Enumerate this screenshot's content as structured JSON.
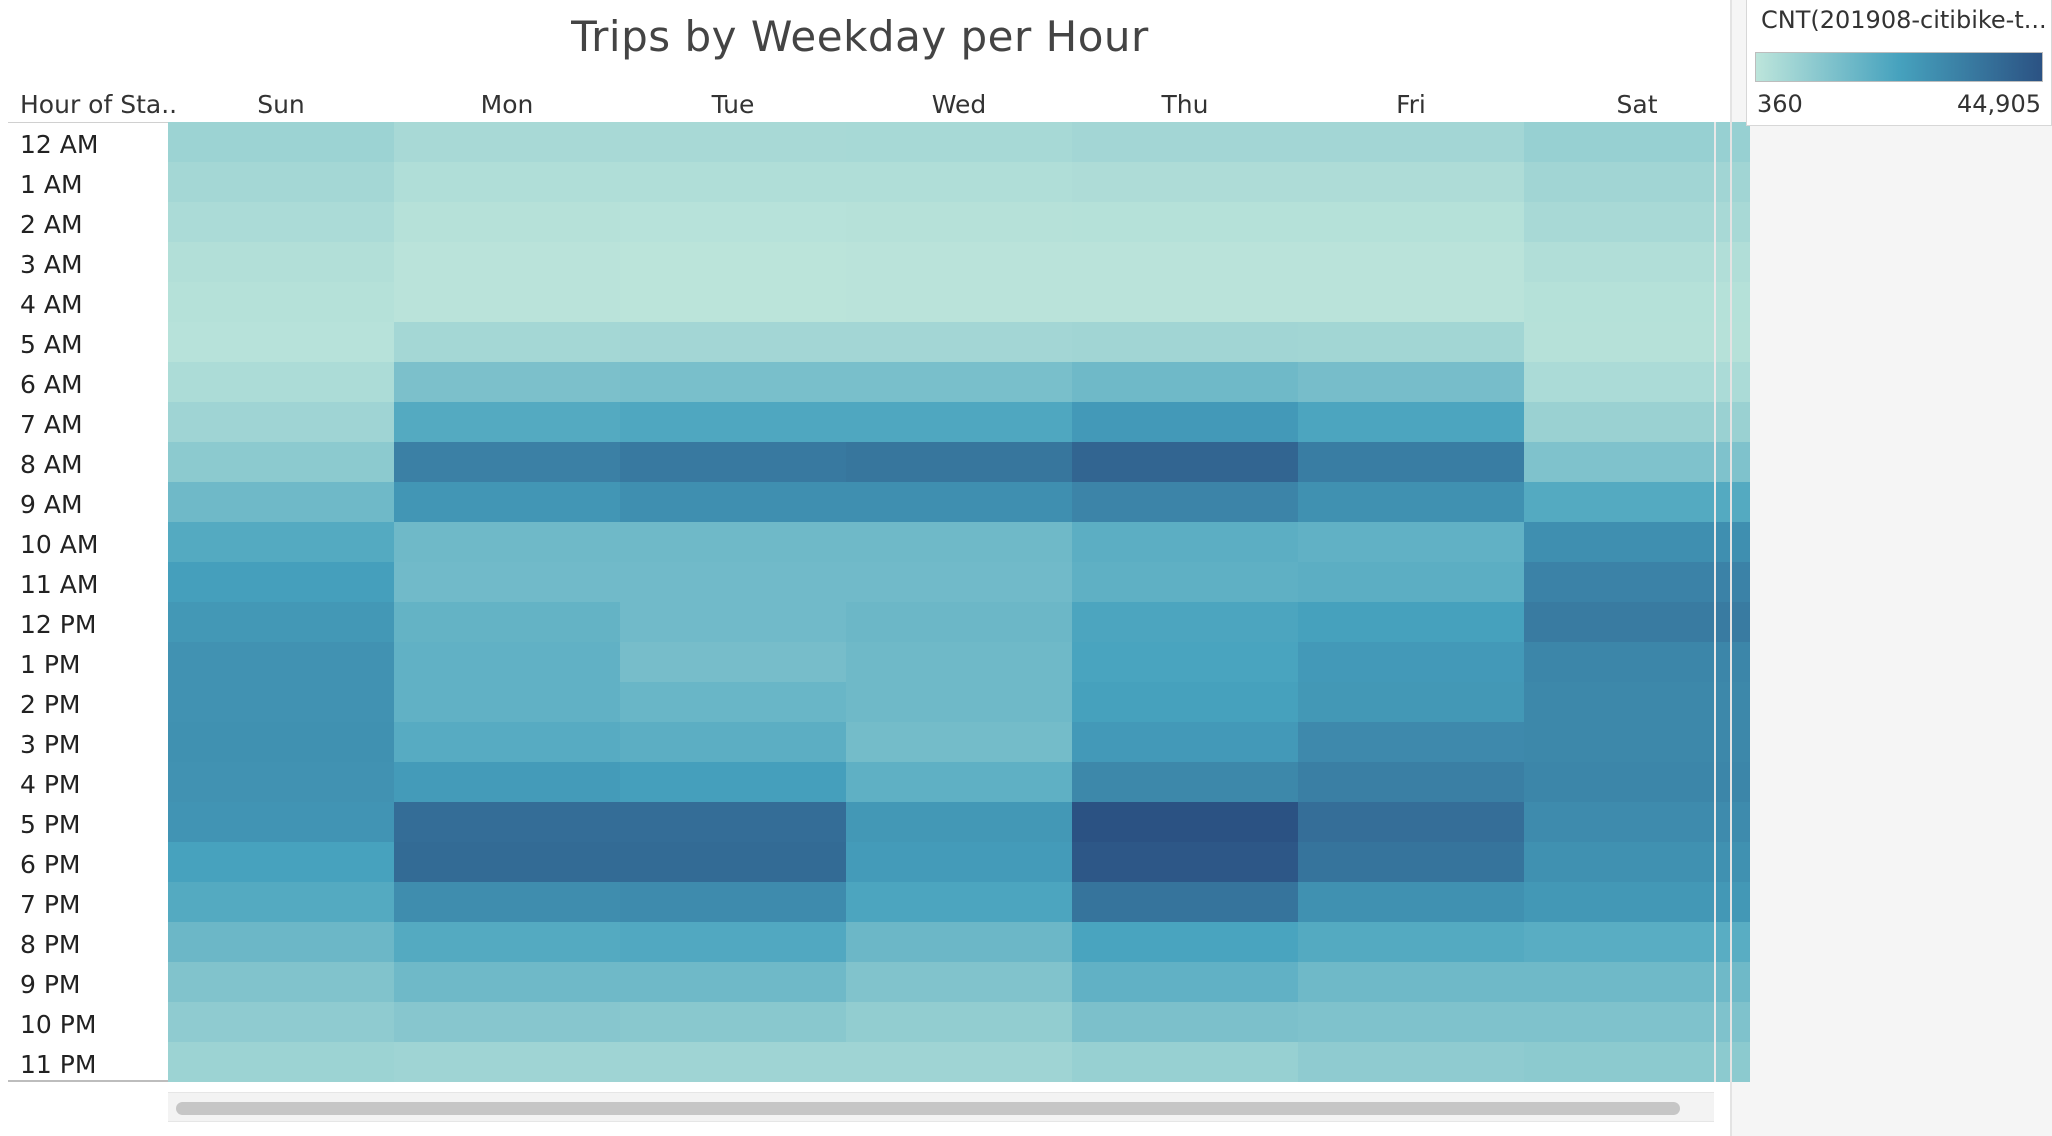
{
  "chart_data": {
    "type": "heatmap",
    "title": "Trips by Weekday per Hour",
    "row_header": "Hour of Sta..",
    "columns": [
      "Sun",
      "Mon",
      "Tue",
      "Wed",
      "Thu",
      "Fri",
      "Sat"
    ],
    "rows": [
      "12 AM",
      "1 AM",
      "2 AM",
      "3 AM",
      "4 AM",
      "5 AM",
      "6 AM",
      "7 AM",
      "8 AM",
      "9 AM",
      "10 AM",
      "11 AM",
      "12 PM",
      "1 PM",
      "2 PM",
      "3 PM",
      "4 PM",
      "5 PM",
      "6 PM",
      "7 PM",
      "8 PM",
      "9 PM",
      "10 PM",
      "11 PM"
    ],
    "values": [
      [
        6500,
        4200,
        4300,
        4400,
        5200,
        5300,
        7500
      ],
      [
        5000,
        2800,
        2700,
        2800,
        3200,
        3200,
        5600
      ],
      [
        3800,
        1600,
        1500,
        1600,
        1800,
        1800,
        4200
      ],
      [
        2400,
        900,
        800,
        900,
        1000,
        1000,
        2600
      ],
      [
        1800,
        900,
        800,
        900,
        1000,
        1000,
        1800
      ],
      [
        1500,
        5000,
        5200,
        5300,
        5600,
        5500,
        1600
      ],
      [
        3500,
        12500,
        13000,
        13000,
        15000,
        13500,
        3800
      ],
      [
        6000,
        20000,
        21000,
        21000,
        25000,
        21500,
        7000
      ],
      [
        9500,
        32000,
        34000,
        35000,
        39500,
        33000,
        12000
      ],
      [
        15000,
        26000,
        28000,
        28000,
        31000,
        27500,
        20000
      ],
      [
        20000,
        15000,
        15000,
        15000,
        18500,
        17500,
        28000
      ],
      [
        23500,
        14500,
        14500,
        14500,
        18000,
        18500,
        31500
      ],
      [
        25500,
        17000,
        14500,
        15500,
        21500,
        23000,
        33500
      ],
      [
        27000,
        17500,
        13500,
        15000,
        22000,
        25000,
        30500
      ],
      [
        27000,
        17500,
        16000,
        15000,
        23000,
        25500,
        30000
      ],
      [
        27500,
        19500,
        18500,
        14000,
        25000,
        29500,
        30000
      ],
      [
        27000,
        24500,
        23500,
        18000,
        30000,
        32500,
        30500
      ],
      [
        26500,
        37500,
        37500,
        25500,
        44905,
        37000,
        29000
      ],
      [
        22500,
        38000,
        38000,
        24500,
        43500,
        35500,
        27500
      ],
      [
        20000,
        28500,
        29000,
        21500,
        35500,
        27500,
        25500
      ],
      [
        15500,
        20000,
        20500,
        15500,
        22000,
        20000,
        19000
      ],
      [
        11500,
        15000,
        15000,
        11500,
        17500,
        15000,
        15000
      ],
      [
        9000,
        10500,
        10000,
        8500,
        12500,
        12000,
        12000
      ],
      [
        6500,
        6000,
        6000,
        6000,
        7500,
        9000,
        9500
      ]
    ],
    "color_range": [
      360,
      44905
    ],
    "colors": [
      "#bde5db",
      "#46a2be",
      "#2b5283"
    ],
    "legend": {
      "title": "CNT(201908-citibike-t...",
      "min_label": "360",
      "max_label": "44,905",
      "placement": "top-right"
    }
  }
}
